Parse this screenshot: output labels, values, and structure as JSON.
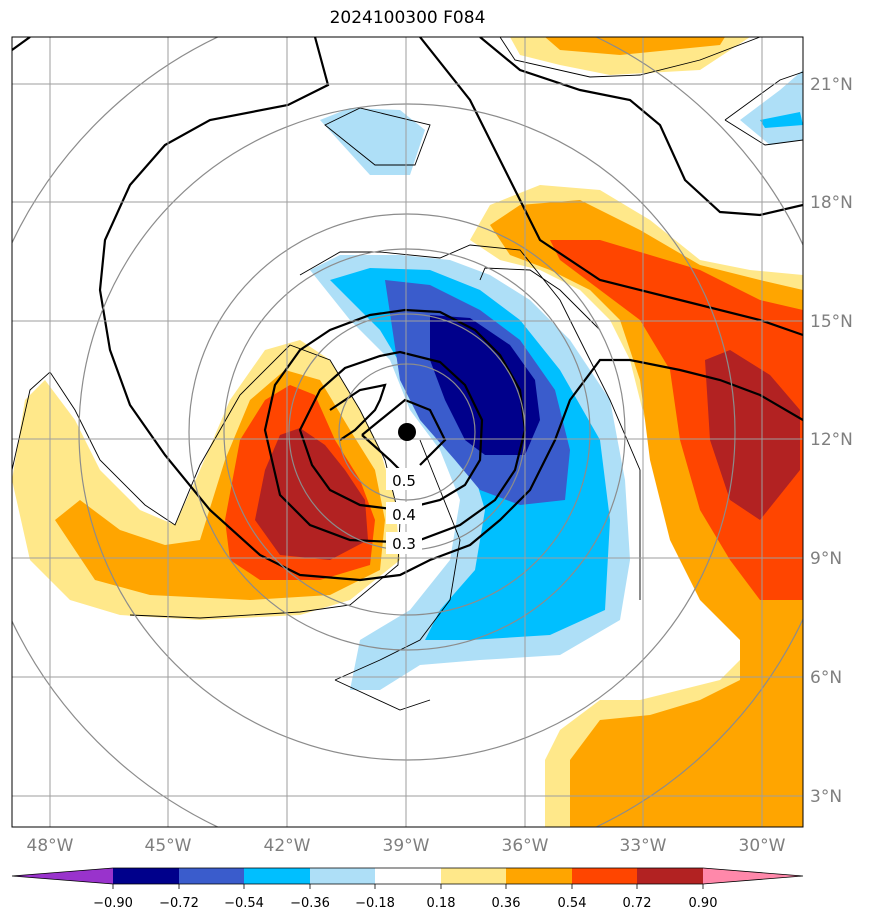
{
  "title": "2024100300 F084",
  "chart_data": {
    "type": "map",
    "lon_ticks": [
      "48°W",
      "45°W",
      "42°W",
      "39°W",
      "36°W",
      "33°W",
      "30°W"
    ],
    "lat_ticks": [
      "21°N",
      "18°N",
      "15°N",
      "12°N",
      "9°N",
      "6°N",
      "3°N"
    ],
    "colorbar_ticks": [
      "−0.90",
      "−0.72",
      "−0.54",
      "−0.36",
      "−0.18",
      "0.18",
      "0.36",
      "0.54",
      "0.72",
      "0.90"
    ],
    "colorbar_colors": [
      "#9933cc",
      "#00008b",
      "#3a5ccc",
      "#00bfff",
      "#aedff7",
      "#ffffff",
      "#ffe88a",
      "#ffa500",
      "#ff4500",
      "#b22222",
      "#ff88aa"
    ],
    "contour_labels": [
      "0.5",
      "0.4",
      "0.3"
    ],
    "center_marker": {
      "lon": -39.0,
      "lat": 12.2
    }
  }
}
